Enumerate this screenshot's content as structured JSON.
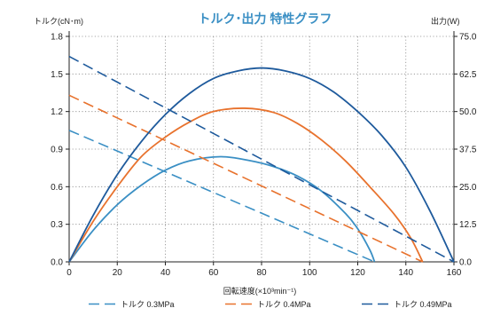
{
  "chart_data": {
    "type": "line",
    "title": "トルク･出力  特性グラフ",
    "ylabel": "トルク(cN･m)",
    "y2label": "出力(W)",
    "xlabel": "回転速度(×10³min⁻¹)",
    "xlim": [
      0,
      160
    ],
    "ylim": [
      0,
      1.8
    ],
    "y2lim": [
      0,
      75
    ],
    "x_ticks": [
      0,
      20,
      40,
      60,
      80,
      100,
      120,
      140,
      160
    ],
    "y_ticks": [
      "0.0",
      "0.3",
      "0.6",
      "0.9",
      "1.2",
      "1.5",
      "1.8"
    ],
    "y2_ticks": [
      "0.0",
      "12.5",
      "25.0",
      "37.5",
      "50.0",
      "62.5",
      "75.0"
    ],
    "grid": true,
    "legend_position": "bottom",
    "series": [
      {
        "name": "トルク 0.3MPa",
        "color": "#3a8fc4",
        "torque": {
          "x": [
            0,
            127
          ],
          "y": [
            1.05,
            0
          ]
        },
        "power": {
          "x": [
            0,
            10,
            20,
            30,
            40,
            50,
            63,
            75,
            85,
            95,
            105,
            115,
            120,
            125,
            127
          ],
          "y": [
            0,
            10.5,
            19,
            25.5,
            30.5,
            33.6,
            35,
            33.7,
            31.7,
            28.5,
            23.5,
            16,
            11,
            4,
            0
          ]
        }
      },
      {
        "name": "トルク 0.4MPa",
        "color": "#e8722d",
        "torque": {
          "x": [
            0,
            147
          ],
          "y": [
            1.33,
            0
          ]
        },
        "power": {
          "x": [
            0,
            10,
            20,
            30,
            40,
            50,
            60,
            73,
            85,
            95,
            105,
            115,
            125,
            135,
            142,
            147
          ],
          "y": [
            0,
            13.5,
            25,
            35,
            41.5,
            46.5,
            50,
            51.1,
            49.7,
            46,
            40.5,
            33.5,
            25,
            16,
            8,
            0
          ]
        }
      },
      {
        "name": "トルク 0.49MPa",
        "color": "#1e5a9c",
        "torque": {
          "x": [
            0,
            160
          ],
          "y": [
            1.64,
            0
          ]
        },
        "power": {
          "x": [
            0,
            10,
            20,
            30,
            40,
            50,
            60,
            70,
            80,
            90,
            100,
            110,
            120,
            130,
            140,
            150,
            160
          ],
          "y": [
            0,
            15.5,
            29,
            40,
            49,
            56,
            61,
            63.5,
            64.5,
            63.5,
            61,
            56.5,
            50,
            42,
            31.5,
            17,
            0
          ]
        }
      }
    ]
  }
}
